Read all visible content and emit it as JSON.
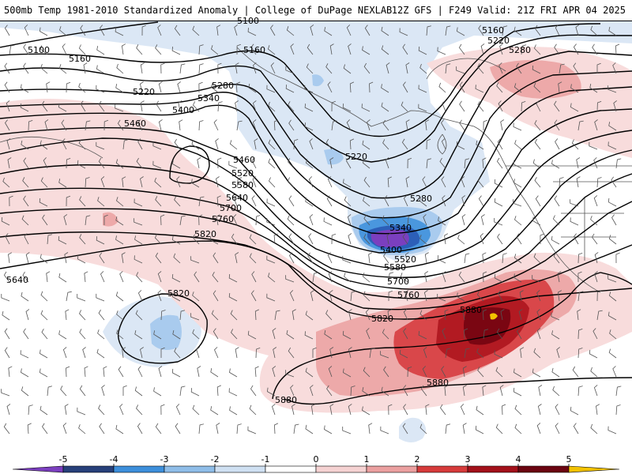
{
  "header": {
    "title_left": "500mb Temp 1981-2010 Standardized Anomaly | College of DuPage NEXLAB",
    "title_right": "12Z GFS | F249 Valid: 21Z FRI APR 04 2025"
  },
  "contour_labels": [
    "5100",
    "5100",
    "5160",
    "5160",
    "5160",
    "5220",
    "5220",
    "5220",
    "5280",
    "5280",
    "5280",
    "5340",
    "5400",
    "5460",
    "5460",
    "5520",
    "5580",
    "5640",
    "5700",
    "5760",
    "5820",
    "5640",
    "5340",
    "5400",
    "5520",
    "5580",
    "5700",
    "5760",
    "5820",
    "5820",
    "5880",
    "5880",
    "5880"
  ],
  "colorbar": {
    "ticks": [
      "-5",
      "-4",
      "-3",
      "-2",
      "-1",
      "0",
      "1",
      "2",
      "3",
      "4",
      "5"
    ],
    "colors": [
      "#7b3fbf",
      "#27407a",
      "#3d8fdb",
      "#8fbde8",
      "#cfe0f2",
      "#ffffff",
      "#f5d2d2",
      "#eba0a0",
      "#d63b3b",
      "#a3101a",
      "#6b0410",
      "#f2c200"
    ]
  },
  "anomaly_colors": {
    "cold_1": "#dbe7f5",
    "cold_2": "#a9cbee",
    "cold_3": "#4a97de",
    "cold_4": "#2c5fb8",
    "cold_5": "#7b3fbf",
    "warm_1": "#f8dcdc",
    "warm_2": "#eda9a9",
    "warm_3": "#d9474a",
    "warm_4": "#b21a22",
    "warm_5": "#7a0612",
    "warm_6": "#f2c200"
  }
}
